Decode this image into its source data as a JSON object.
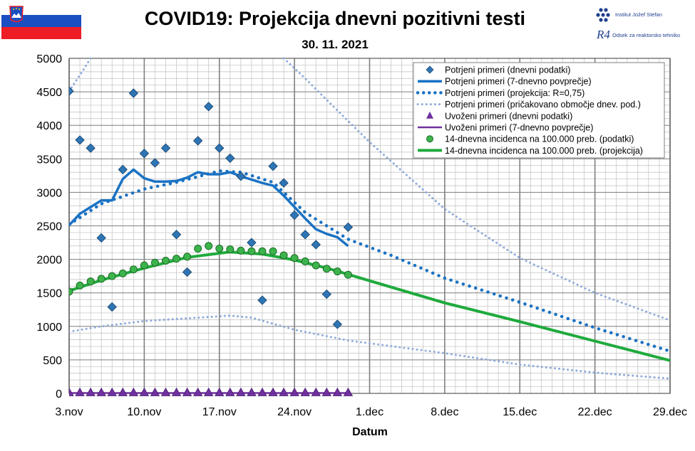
{
  "header": {
    "title": "COVID19: Projekcija dnevni pozitivni testi",
    "subtitle": "30. 11. 2021"
  },
  "logo": {
    "institute": "Institut Jožef Stefan",
    "department": "Odsek za reaktorsko tehniko",
    "mark": "R4"
  },
  "colors": {
    "blue": "#1a72c4",
    "diamond": "#2e75b6",
    "green": "#1faa3c",
    "marker_green": "#3cb44b",
    "purple": "#7030a0",
    "dotted_light": "#8eaadb",
    "grid_major": "#808080",
    "grid_minor": "#bfbfbf"
  },
  "chart_data": {
    "type": "line",
    "title": "COVID19: Projekcija dnevni pozitivni testi",
    "subtitle": "30. 11. 2021",
    "xlabel": "Datum",
    "ylabel": "",
    "xlim": [
      "2021-11-03",
      "2021-12-29"
    ],
    "ylim": [
      0,
      5000
    ],
    "yticks": [
      0,
      500,
      1000,
      1500,
      2000,
      2500,
      3000,
      3500,
      4000,
      4500,
      5000
    ],
    "xticks": [
      {
        "date": "2021-11-03",
        "label": "3.nov"
      },
      {
        "date": "2021-11-10",
        "label": "10.nov"
      },
      {
        "date": "2021-11-17",
        "label": "17.nov"
      },
      {
        "date": "2021-11-24",
        "label": "24.nov"
      },
      {
        "date": "2021-12-01",
        "label": "1.dec"
      },
      {
        "date": "2021-12-08",
        "label": "8.dec"
      },
      {
        "date": "2021-12-15",
        "label": "15.dec"
      },
      {
        "date": "2021-12-22",
        "label": "22.dec"
      },
      {
        "date": "2021-12-29",
        "label": "29.dec"
      }
    ],
    "grid": true,
    "legend_position": "top-right",
    "series": [
      {
        "name": "Potrjeni primeri (dnevni podatki)",
        "style": "diamond",
        "points": [
          [
            "2021-11-03",
            4510
          ],
          [
            "2021-11-04",
            3780
          ],
          [
            "2021-11-05",
            3660
          ],
          [
            "2021-11-06",
            2320
          ],
          [
            "2021-11-07",
            1290
          ],
          [
            "2021-11-08",
            3340
          ],
          [
            "2021-11-09",
            4480
          ],
          [
            "2021-11-10",
            3580
          ],
          [
            "2021-11-11",
            3440
          ],
          [
            "2021-11-12",
            3660
          ],
          [
            "2021-11-13",
            2370
          ],
          [
            "2021-11-14",
            1810
          ],
          [
            "2021-11-15",
            3770
          ],
          [
            "2021-11-16",
            4280
          ],
          [
            "2021-11-17",
            3660
          ],
          [
            "2021-11-18",
            3510
          ],
          [
            "2021-11-19",
            3240
          ],
          [
            "2021-11-20",
            2250
          ],
          [
            "2021-11-21",
            1390
          ],
          [
            "2021-11-22",
            3390
          ],
          [
            "2021-11-23",
            3140
          ],
          [
            "2021-11-24",
            2660
          ],
          [
            "2021-11-25",
            2370
          ],
          [
            "2021-11-26",
            2220
          ],
          [
            "2021-11-27",
            1480
          ],
          [
            "2021-11-28",
            1030
          ],
          [
            "2021-11-29",
            2480
          ]
        ]
      },
      {
        "name": "Potrjeni primeri (7-dnevno povprečje)",
        "style": "solid-blue",
        "points": [
          [
            "2021-11-03",
            2510
          ],
          [
            "2021-11-04",
            2680
          ],
          [
            "2021-11-05",
            2780
          ],
          [
            "2021-11-06",
            2880
          ],
          [
            "2021-11-07",
            2880
          ],
          [
            "2021-11-08",
            3200
          ],
          [
            "2021-11-09",
            3340
          ],
          [
            "2021-11-10",
            3210
          ],
          [
            "2021-11-11",
            3160
          ],
          [
            "2021-11-12",
            3160
          ],
          [
            "2021-11-13",
            3170
          ],
          [
            "2021-11-14",
            3220
          ],
          [
            "2021-11-15",
            3300
          ],
          [
            "2021-11-16",
            3270
          ],
          [
            "2021-11-17",
            3270
          ],
          [
            "2021-11-18",
            3300
          ],
          [
            "2021-11-19",
            3240
          ],
          [
            "2021-11-20",
            3190
          ],
          [
            "2021-11-21",
            3140
          ],
          [
            "2021-11-22",
            3100
          ],
          [
            "2021-11-23",
            2950
          ],
          [
            "2021-11-24",
            2780
          ],
          [
            "2021-11-25",
            2610
          ],
          [
            "2021-11-26",
            2450
          ],
          [
            "2021-11-27",
            2380
          ],
          [
            "2021-11-28",
            2330
          ],
          [
            "2021-11-29",
            2200
          ]
        ]
      },
      {
        "name": "Potrjeni primeri (projekcija: R=0,75)",
        "style": "dotted-blue",
        "points": [
          [
            "2021-11-03",
            2520
          ],
          [
            "2021-11-06",
            2830
          ],
          [
            "2021-11-10",
            3050
          ],
          [
            "2021-11-13",
            3150
          ],
          [
            "2021-11-17",
            3320
          ],
          [
            "2021-11-19",
            3300
          ],
          [
            "2021-11-22",
            3150
          ],
          [
            "2021-11-25",
            2700
          ],
          [
            "2021-11-29",
            2300
          ],
          [
            "2021-12-03",
            2060
          ],
          [
            "2021-12-08",
            1720
          ],
          [
            "2021-12-15",
            1360
          ],
          [
            "2021-12-22",
            980
          ],
          [
            "2021-12-29",
            630
          ]
        ]
      },
      {
        "name": "Potrjeni primeri (pričakovano območje dnev. pod.)",
        "style": "dotted-light",
        "points": [
          [
            "2021-11-03",
            4510
          ],
          [
            "2021-11-04",
            4750
          ],
          [
            "2021-11-05",
            5000
          ]
        ]
      },
      {
        "name": "",
        "style": "dotted-light",
        "points": [
          [
            "2021-11-23",
            5000
          ],
          [
            "2021-11-25",
            4700
          ],
          [
            "2021-11-27",
            4380
          ],
          [
            "2021-12-01",
            3750
          ],
          [
            "2021-12-08",
            2750
          ],
          [
            "2021-12-15",
            2020
          ],
          [
            "2021-12-22",
            1500
          ],
          [
            "2021-12-29",
            1090
          ]
        ]
      },
      {
        "name": "",
        "style": "dotted-light",
        "points": [
          [
            "2021-11-03",
            920
          ],
          [
            "2021-11-06",
            1000
          ],
          [
            "2021-11-10",
            1080
          ],
          [
            "2021-11-14",
            1120
          ],
          [
            "2021-11-18",
            1160
          ],
          [
            "2021-11-20",
            1130
          ],
          [
            "2021-11-24",
            950
          ],
          [
            "2021-11-29",
            790
          ],
          [
            "2021-12-08",
            600
          ],
          [
            "2021-12-15",
            430
          ],
          [
            "2021-12-22",
            310
          ],
          [
            "2021-12-29",
            220
          ]
        ]
      },
      {
        "name": "Uvoženi primeri (dnevni podatki)",
        "style": "triangle",
        "points": [
          [
            "2021-11-03",
            5
          ],
          [
            "2021-11-04",
            5
          ],
          [
            "2021-11-05",
            5
          ],
          [
            "2021-11-06",
            5
          ],
          [
            "2021-11-07",
            5
          ],
          [
            "2021-11-08",
            5
          ],
          [
            "2021-11-09",
            5
          ],
          [
            "2021-11-10",
            5
          ],
          [
            "2021-11-11",
            5
          ],
          [
            "2021-11-12",
            5
          ],
          [
            "2021-11-13",
            5
          ],
          [
            "2021-11-14",
            5
          ],
          [
            "2021-11-15",
            5
          ],
          [
            "2021-11-16",
            5
          ],
          [
            "2021-11-17",
            5
          ],
          [
            "2021-11-18",
            5
          ],
          [
            "2021-11-19",
            5
          ],
          [
            "2021-11-20",
            5
          ],
          [
            "2021-11-21",
            5
          ],
          [
            "2021-11-22",
            5
          ],
          [
            "2021-11-23",
            5
          ],
          [
            "2021-11-24",
            5
          ],
          [
            "2021-11-25",
            5
          ],
          [
            "2021-11-26",
            5
          ],
          [
            "2021-11-27",
            5
          ],
          [
            "2021-11-28",
            5
          ],
          [
            "2021-11-29",
            5
          ]
        ]
      },
      {
        "name": "Uvoženi primeri (7-dnevno povprečje)",
        "style": "solid-purple",
        "points": [
          [
            "2021-11-03",
            5
          ],
          [
            "2021-11-29",
            5
          ]
        ]
      },
      {
        "name": "14-dnevna incidenca na 100.000 preb. (podatki)",
        "style": "circle",
        "points": [
          [
            "2021-11-03",
            1520
          ],
          [
            "2021-11-04",
            1610
          ],
          [
            "2021-11-05",
            1670
          ],
          [
            "2021-11-06",
            1710
          ],
          [
            "2021-11-07",
            1750
          ],
          [
            "2021-11-08",
            1790
          ],
          [
            "2021-11-09",
            1850
          ],
          [
            "2021-11-10",
            1910
          ],
          [
            "2021-11-11",
            1950
          ],
          [
            "2021-11-12",
            1980
          ],
          [
            "2021-11-13",
            2010
          ],
          [
            "2021-11-14",
            2040
          ],
          [
            "2021-11-15",
            2160
          ],
          [
            "2021-11-16",
            2200
          ],
          [
            "2021-11-17",
            2160
          ],
          [
            "2021-11-18",
            2150
          ],
          [
            "2021-11-19",
            2130
          ],
          [
            "2021-11-20",
            2120
          ],
          [
            "2021-11-21",
            2120
          ],
          [
            "2021-11-22",
            2120
          ],
          [
            "2021-11-23",
            2060
          ],
          [
            "2021-11-24",
            2020
          ],
          [
            "2021-11-25",
            1970
          ],
          [
            "2021-11-26",
            1910
          ],
          [
            "2021-11-27",
            1860
          ],
          [
            "2021-11-28",
            1820
          ],
          [
            "2021-11-29",
            1770
          ]
        ]
      },
      {
        "name": "14-dnevna incidenca na 100.000 preb. (projekcija)",
        "style": "solid-green",
        "points": [
          [
            "2021-11-03",
            1530
          ],
          [
            "2021-11-06",
            1690
          ],
          [
            "2021-11-10",
            1870
          ],
          [
            "2021-11-14",
            2030
          ],
          [
            "2021-11-18",
            2110
          ],
          [
            "2021-11-21",
            2080
          ],
          [
            "2021-11-24",
            1990
          ],
          [
            "2021-11-27",
            1870
          ],
          [
            "2021-12-01",
            1680
          ],
          [
            "2021-12-08",
            1350
          ],
          [
            "2021-12-15",
            1070
          ],
          [
            "2021-12-22",
            780
          ],
          [
            "2021-12-29",
            490
          ]
        ]
      }
    ]
  }
}
